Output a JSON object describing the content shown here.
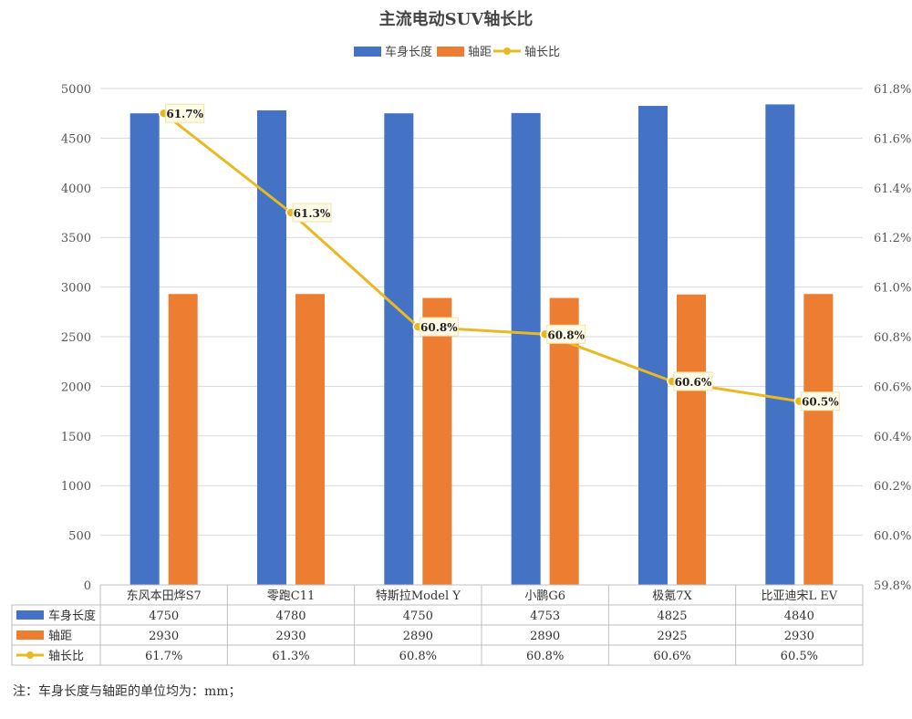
{
  "chart_data": {
    "type": "bar",
    "title": "主流电动SUV轴长比",
    "categories": [
      "东风本田烨S7",
      "零跑C11",
      "特斯拉Model Y",
      "小鹏G6",
      "极氪7X",
      "比亚迪宋L EV"
    ],
    "series": [
      {
        "name": "车身长度",
        "type": "bar",
        "axis": "left",
        "color": "#4472C4",
        "values": [
          4750,
          4780,
          4750,
          4753,
          4825,
          4840
        ],
        "table_labels": [
          "4750",
          "4780",
          "4750",
          "4753",
          "4825",
          "4840"
        ]
      },
      {
        "name": "轴距",
        "type": "bar",
        "axis": "left",
        "color": "#ED7D31",
        "values": [
          2930,
          2930,
          2890,
          2890,
          2925,
          2930
        ],
        "table_labels": [
          "2930",
          "2930",
          "2890",
          "2890",
          "2925",
          "2930"
        ]
      },
      {
        "name": "轴长比",
        "type": "line",
        "axis": "right",
        "color": "#E8B923",
        "values": [
          61.7,
          61.3,
          60.84,
          60.81,
          60.62,
          60.54
        ],
        "point_labels": [
          "61.7%",
          "61.3%",
          "60.8%",
          "60.8%",
          "60.6%",
          "60.5%"
        ],
        "table_labels": [
          "61.7%",
          "61.3%",
          "60.8%",
          "60.8%",
          "60.6%",
          "60.5%"
        ]
      }
    ],
    "y_left": {
      "min": 0,
      "max": 5000,
      "ticks": [
        "0",
        "500",
        "1000",
        "1500",
        "2000",
        "2500",
        "3000",
        "3500",
        "4000",
        "4500",
        "5000"
      ]
    },
    "y_right": {
      "min": 59.8,
      "max": 61.8,
      "ticks": [
        "59.8%",
        "60.0%",
        "60.2%",
        "60.4%",
        "60.6%",
        "60.8%",
        "61.0%",
        "61.2%",
        "61.4%",
        "61.6%",
        "61.8%"
      ]
    },
    "legend_position": "top",
    "grid": true,
    "data_table": true
  },
  "note": "注：车身长度与轴距的单位均为：mm；"
}
